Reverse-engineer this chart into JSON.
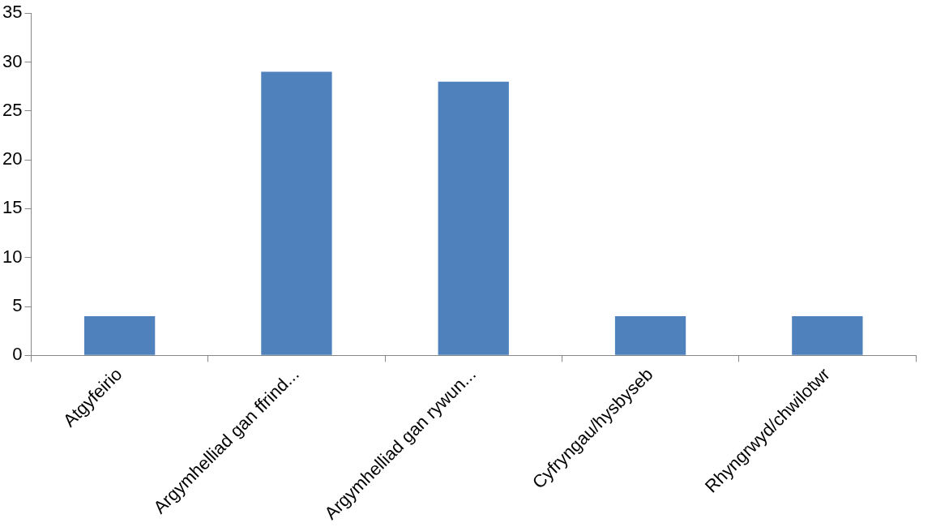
{
  "chart_data": {
    "type": "bar",
    "categories": [
      "Atgyfeirio",
      "Argymhelliad gan ffrind...",
      "Argymhelliad gan rywun...",
      "Cyfryngau/hysbyseb",
      "Rhyngrwyd/chwilotwr"
    ],
    "values": [
      4,
      29,
      28,
      4,
      4
    ],
    "color": "#4f81bd",
    "ylim": [
      0,
      35
    ],
    "yticks": [
      0,
      5,
      10,
      15,
      20,
      25,
      30,
      35
    ],
    "grid": false,
    "legend": false
  }
}
